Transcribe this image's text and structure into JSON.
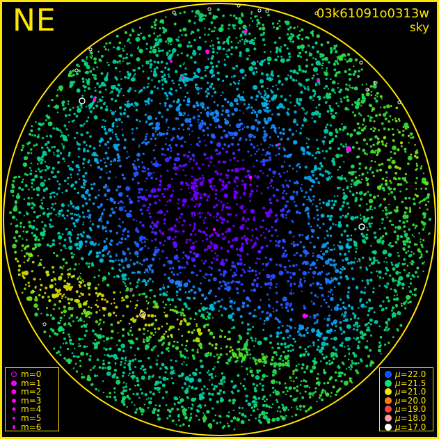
{
  "image": {
    "corner_label": "NE",
    "id": "03k61091o0313w",
    "subtitle": "sky"
  },
  "colors": {
    "frame": "#ffe600",
    "background": "#000000",
    "magnitude_marker": "#ff00ff",
    "surface_brightness_scale": [
      "#0b50ff",
      "#00e676",
      "#f6e000",
      "#ff7a00",
      "#ff3b3b",
      "#ff9aa6",
      "#ffffff"
    ]
  },
  "legends": {
    "magnitude": [
      {
        "label": "m=0",
        "style": "ring"
      },
      {
        "label": "m=1",
        "style": "dot"
      },
      {
        "label": "m=2",
        "style": "dot"
      },
      {
        "label": "m=3",
        "style": "dot"
      },
      {
        "label": "m=4",
        "style": "dot"
      },
      {
        "label": "m=5",
        "style": "dot"
      },
      {
        "label": "m=6",
        "style": "dot"
      }
    ],
    "surface_brightness": [
      {
        "symbol": "μ",
        "value": "=22.0",
        "color": "#0b50ff"
      },
      {
        "symbol": "μ",
        "value": "=21.5",
        "color": "#00e676"
      },
      {
        "symbol": "μ",
        "value": "=21.0",
        "color": "#f6e000"
      },
      {
        "symbol": "μ",
        "value": "=20.0",
        "color": "#ff7a00"
      },
      {
        "symbol": "μ",
        "value": "=19.0",
        "color": "#ff3b3b"
      },
      {
        "symbol": "μ",
        "value": "=18.0",
        "color": "#ff9aa6"
      },
      {
        "symbol": "μ",
        "value": "=17.0",
        "color": "#ffffff"
      }
    ]
  },
  "chart_data": {
    "type": "scatter",
    "title": "",
    "xlabel": "",
    "ylabel": "",
    "grid": false,
    "legend_placement": "bottom-left and bottom-right",
    "projection": "all-sky fisheye circle",
    "series": [
      {
        "name": "stars",
        "values": "dense star field with magnitude-scaled markers"
      },
      {
        "name": "sky brightness",
        "values": "background color mapped to surface brightness μ from 22.0 to 17.0"
      }
    ]
  }
}
